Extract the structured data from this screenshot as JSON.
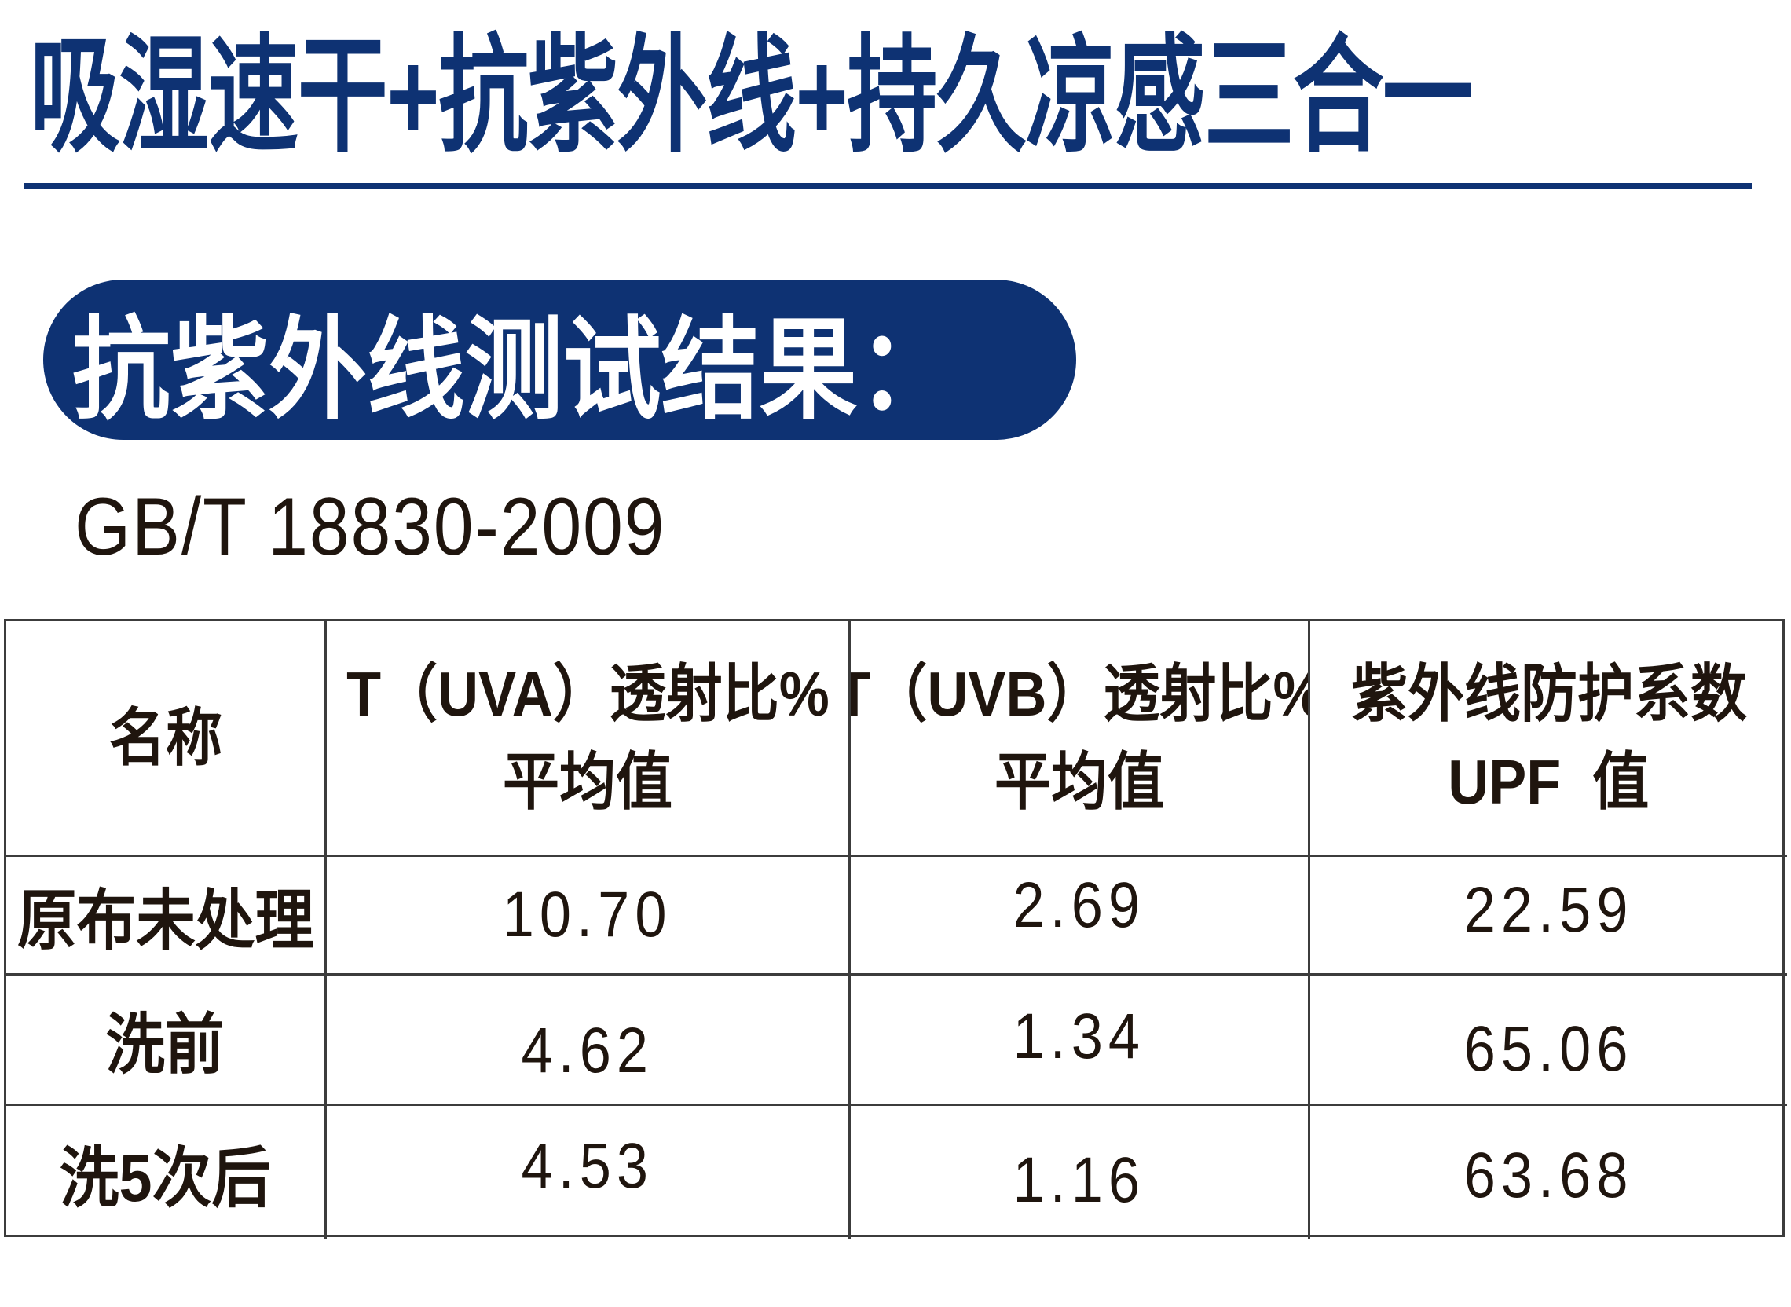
{
  "header": {
    "title": "吸湿速干+抗紫外线+持久凉感三合一",
    "badge": "抗紫外线测试结果：",
    "standard": "GB/T 18830-2009"
  },
  "colors": {
    "navy": "#0e3273",
    "text_black": "#1f150e",
    "table_border": "#3c3c3c",
    "badge_text": "#ffffff",
    "background": "#ffffff"
  },
  "table": {
    "columns": [
      {
        "line1": "名称",
        "line2": ""
      },
      {
        "line1": "T（UVA）透射比%",
        "line2": "平均值"
      },
      {
        "line1": "T（UVB）透射比%",
        "line2": "平均值"
      },
      {
        "line1": "紫外线防护系数",
        "line2": "UPF  值"
      }
    ],
    "rows": [
      {
        "name": "原布未处理",
        "uva": "10.70",
        "uvb": "2.69",
        "upf": "22.59"
      },
      {
        "name": "洗前",
        "uva": "4.62",
        "uvb": "1.34",
        "upf": "65.06"
      },
      {
        "name": "洗5次后",
        "uva": "4.53",
        "uvb": "1.16",
        "upf": "63.68"
      }
    ]
  },
  "chart_data": {
    "type": "table",
    "title": "抗紫外线测试结果",
    "standard": "GB/T 18830-2009",
    "columns": [
      "名称",
      "T（UVA）透射比% 平均值",
      "T（UVB）透射比% 平均值",
      "紫外线防护系数 UPF 值"
    ],
    "rows": [
      [
        "原布未处理",
        10.7,
        2.69,
        22.59
      ],
      [
        "洗前",
        4.62,
        1.34,
        65.06
      ],
      [
        "洗5次后",
        4.53,
        1.16,
        63.68
      ]
    ]
  }
}
